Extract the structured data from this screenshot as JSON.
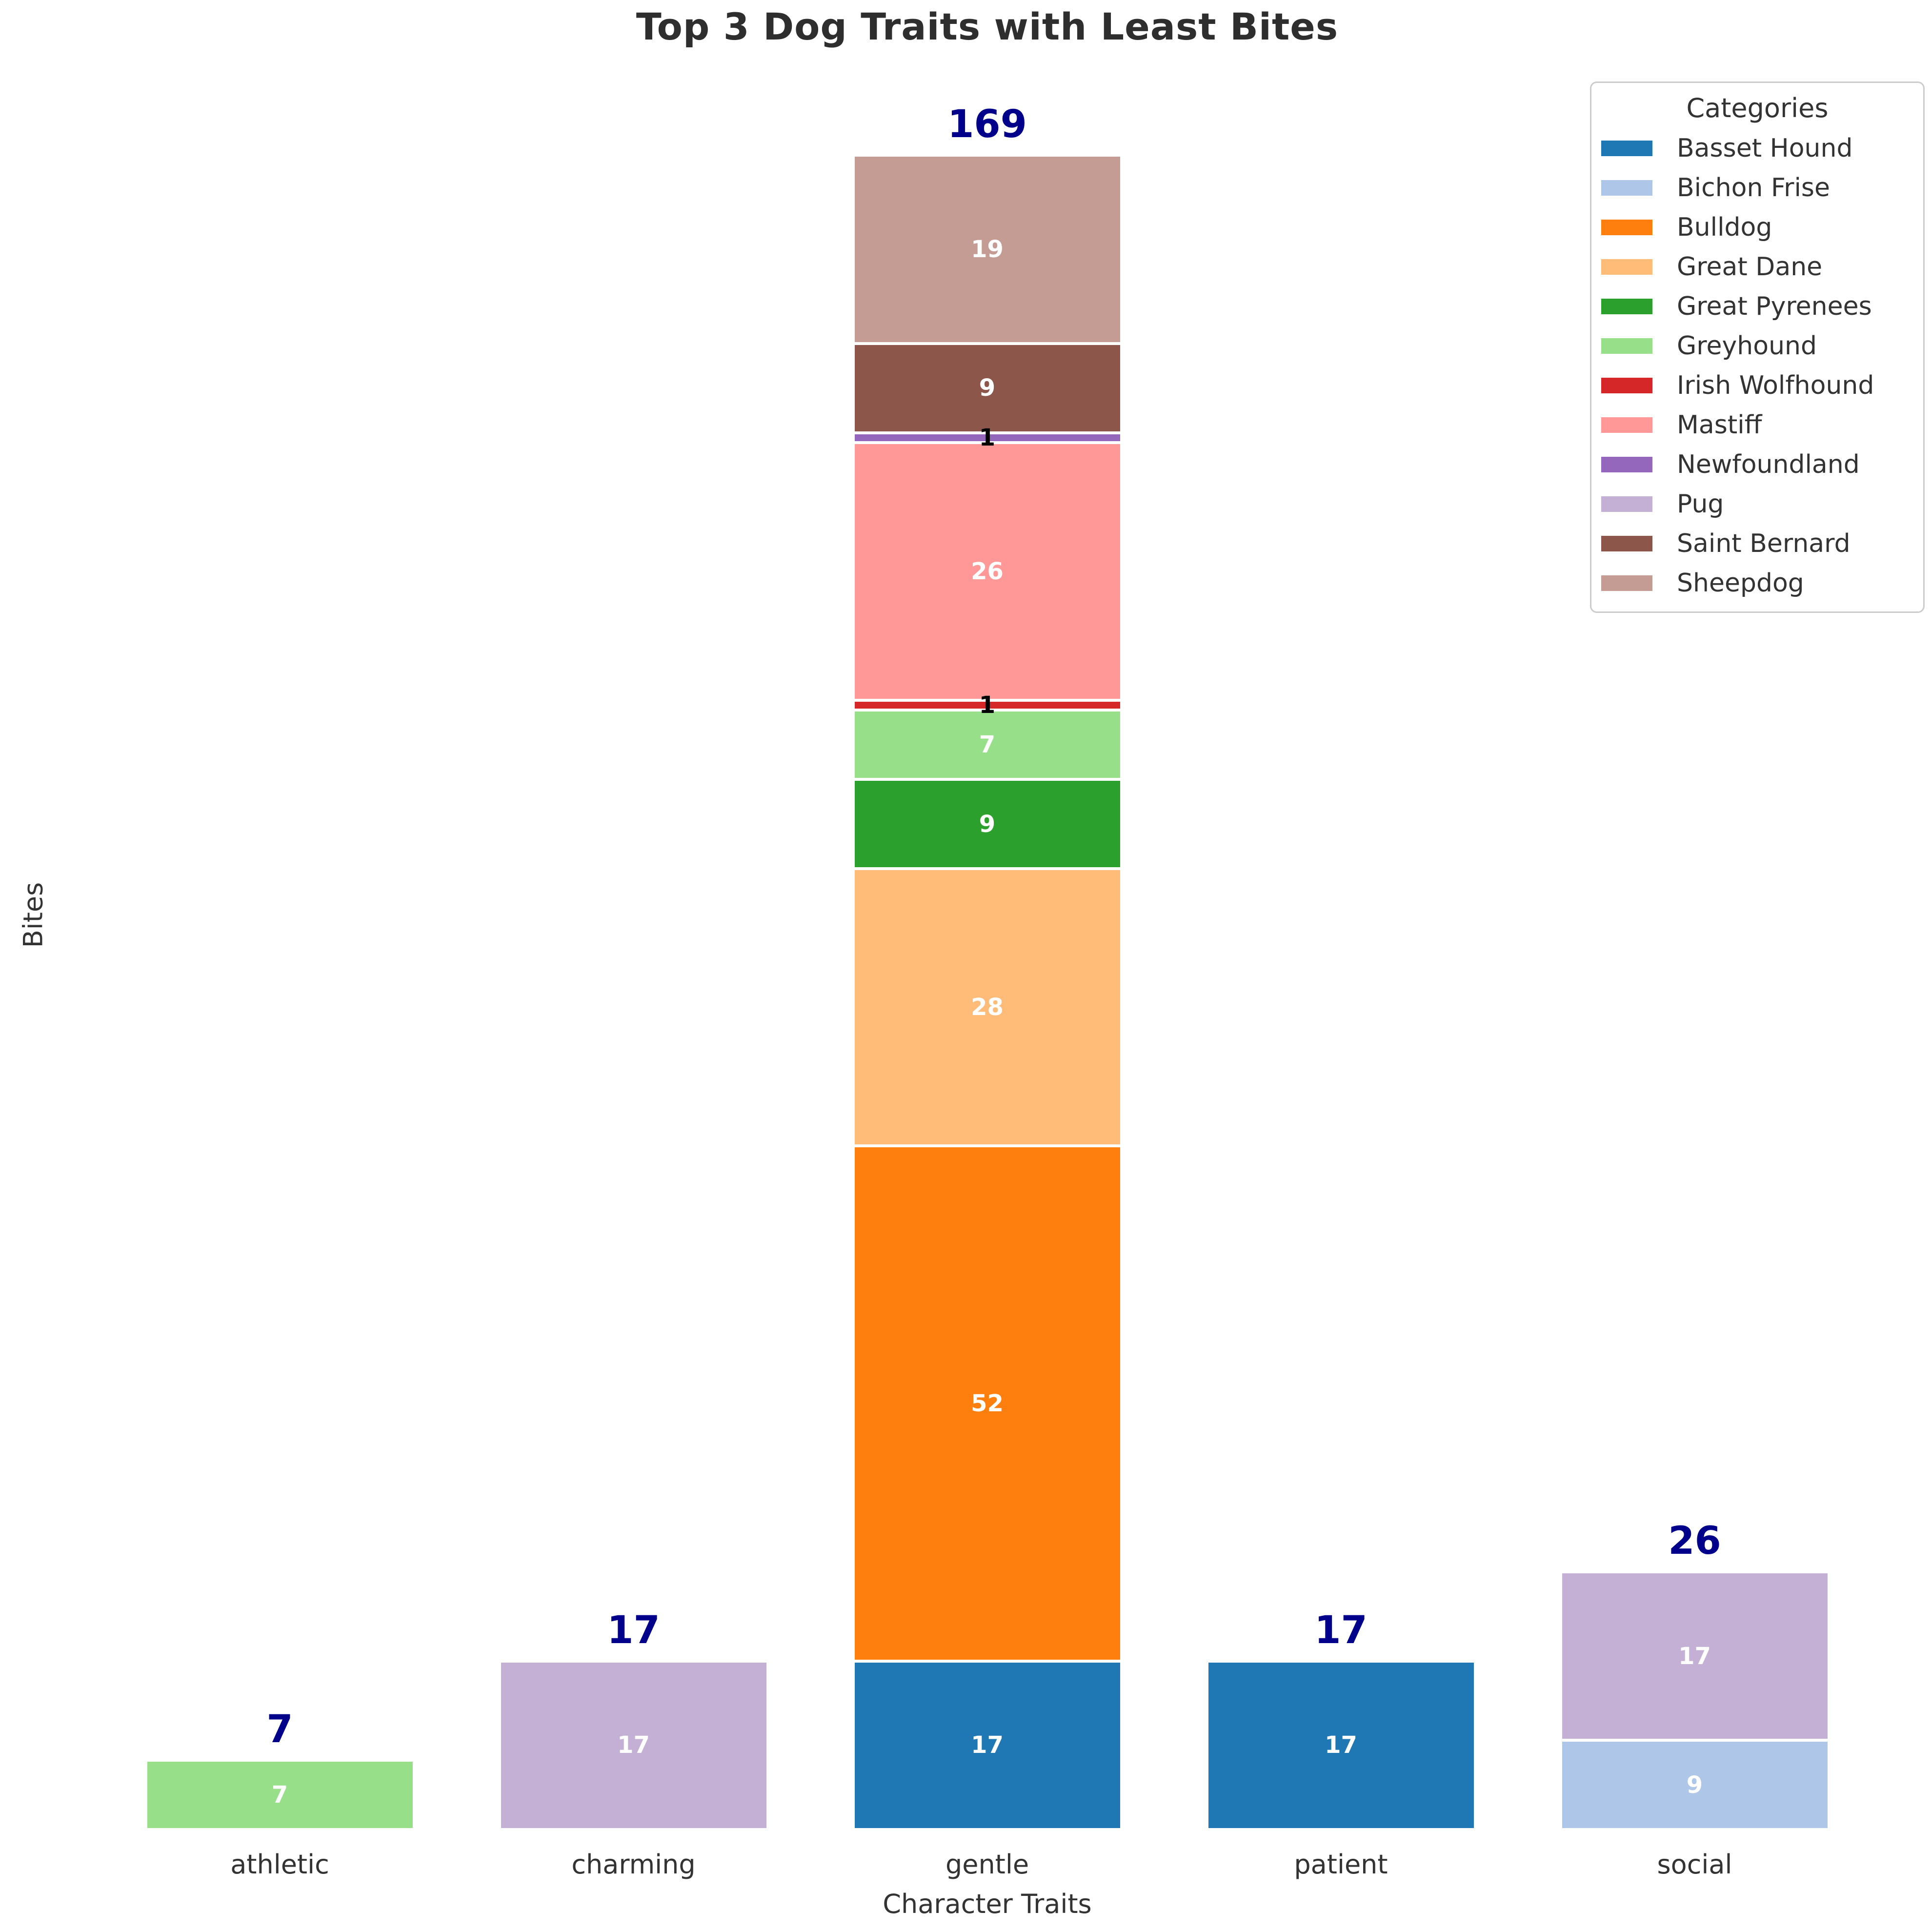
{
  "chart_data": {
    "type": "bar",
    "stacked": true,
    "title": "Top 3 Dog Traits with Least Bites",
    "xlabel": "Character Traits",
    "ylabel": "Bites",
    "categories": [
      "athletic",
      "charming",
      "gentle",
      "patient",
      "social"
    ],
    "series": [
      {
        "name": "Basset Hound",
        "color": "#1f77b4",
        "values": [
          0,
          0,
          17,
          17,
          0
        ]
      },
      {
        "name": "Bichon Frise",
        "color": "#aec7e8",
        "values": [
          0,
          0,
          0,
          0,
          9
        ]
      },
      {
        "name": "Bulldog",
        "color": "#ff7f0e",
        "values": [
          0,
          0,
          52,
          0,
          0
        ]
      },
      {
        "name": "Great Dane",
        "color": "#ffbb78",
        "values": [
          0,
          0,
          28,
          0,
          0
        ]
      },
      {
        "name": "Great Pyrenees",
        "color": "#2ca02c",
        "values": [
          0,
          0,
          9,
          0,
          0
        ]
      },
      {
        "name": "Greyhound",
        "color": "#98df8a",
        "values": [
          7,
          0,
          7,
          0,
          0
        ]
      },
      {
        "name": "Irish Wolfhound",
        "color": "#d62728",
        "values": [
          0,
          0,
          1,
          0,
          0
        ]
      },
      {
        "name": "Mastiff",
        "color": "#ff9896",
        "values": [
          0,
          0,
          26,
          0,
          0
        ]
      },
      {
        "name": "Newfoundland",
        "color": "#9467bd",
        "values": [
          0,
          0,
          1,
          0,
          0
        ]
      },
      {
        "name": "Pug",
        "color": "#c5b0d5",
        "values": [
          0,
          17,
          0,
          0,
          17
        ]
      },
      {
        "name": "Saint Bernard",
        "color": "#8c564b",
        "values": [
          0,
          0,
          9,
          0,
          0
        ]
      },
      {
        "name": "Sheepdog",
        "color": "#c49c94",
        "values": [
          0,
          0,
          19,
          0,
          0
        ]
      }
    ],
    "totals": [
      7,
      17,
      169,
      17,
      26
    ],
    "ylim": [
      0,
      169
    ],
    "grid": false,
    "legend_title": "Categories",
    "legend_position": "upper right",
    "total_label_color": "#00008B",
    "bar_label_color": "#ffffff",
    "small_bar_label_color": "#000000"
  }
}
